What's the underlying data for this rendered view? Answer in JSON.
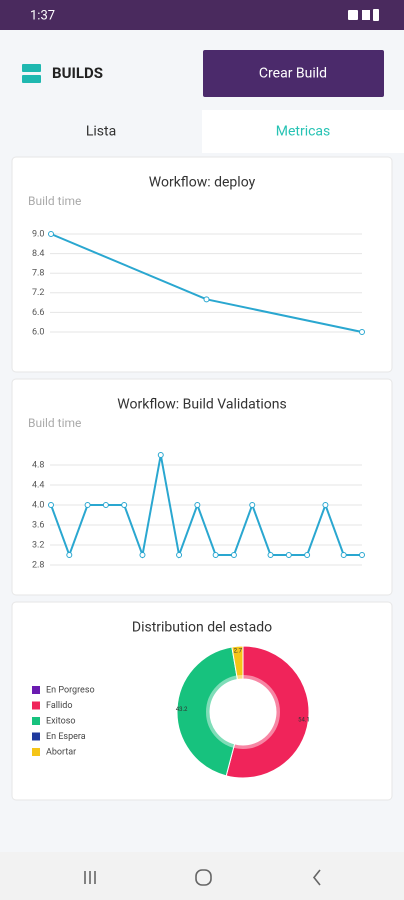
{
  "status_bar": {
    "time": "1:37"
  },
  "header": {
    "title": "BUILDS",
    "button": "Crear Build"
  },
  "tabs": [
    "Lista",
    "Metricas"
  ],
  "chart_data": [
    {
      "type": "line",
      "title": "Workflow: deploy",
      "y_label": "Build time",
      "categories": [
        null,
        null,
        null
      ],
      "values": [
        9.0,
        7.0,
        6.0
      ],
      "color": "#2aa7d0",
      "ylim": [
        6.0,
        9.0
      ],
      "yticks": [
        {
          "value": 6,
          "label": "6.0"
        },
        6.6,
        7.2,
        7.8,
        8.4,
        {
          "value": 9,
          "label": "9.0"
        }
      ],
      "grid": true
    },
    {
      "type": "line",
      "title": "Workflow: Build Validations",
      "y_label": "Build time",
      "categories": [
        null,
        null,
        null,
        null,
        null,
        null,
        null,
        null,
        null,
        null,
        null,
        null,
        null,
        null,
        null,
        null,
        null,
        null
      ],
      "values": [
        4.0,
        3.0,
        4.0,
        4.0,
        4.0,
        3.0,
        5.0,
        3.0,
        4.0,
        3.0,
        3.0,
        4.0,
        3.0,
        3.0,
        3.0,
        4.0,
        3.0,
        3.0
      ],
      "color": "#2aa7d0",
      "ylim": [
        2.8,
        5.0
      ],
      "yticks": [
        2.8,
        3.2,
        3.6,
        {
          "value": 4,
          "label": "4.0"
        },
        4.4,
        4.8
      ],
      "grid": true
    },
    {
      "type": "doughnut",
      "title": "Distribution del estado",
      "categories": [
        "En Porgreso",
        "Fallido",
        "Exitoso",
        "En Espera",
        "Abortar"
      ],
      "values": [
        0,
        54.1,
        43.2,
        0,
        2.7
      ],
      "colors": [
        "#6a1bb0",
        "#f0245a",
        "#17c27e",
        "#1f3a9e",
        "#f5c518"
      ],
      "legend": "left"
    }
  ]
}
